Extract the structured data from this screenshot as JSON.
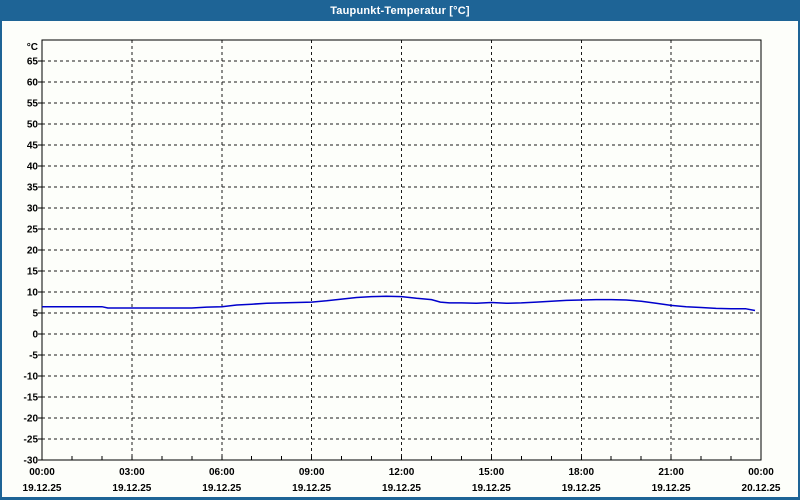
{
  "window": {
    "title": "Taupunkt-Temperatur [°C]",
    "titlebar_color": "#1E6496",
    "titlebar_text_color": "#FFFFFF",
    "border_color": "#1E6496",
    "background_color": "#FDFEFA"
  },
  "chart_data": {
    "type": "line",
    "title": "Taupunkt-Temperatur [°C]",
    "grid": "dashed",
    "legend": "none",
    "frame_color": "#000000",
    "grid_color": "#1A1A1A",
    "label_color": "#000000",
    "x": {
      "min_hours": 0,
      "max_hours": 24,
      "minor_tick_hours": 1,
      "major_tick_hours": 3,
      "ticks": [
        {
          "hour": 0,
          "time": "00:00",
          "date": "19.12.25"
        },
        {
          "hour": 3,
          "time": "03:00",
          "date": "19.12.25"
        },
        {
          "hour": 6,
          "time": "06:00",
          "date": "19.12.25"
        },
        {
          "hour": 9,
          "time": "09:00",
          "date": "19.12.25"
        },
        {
          "hour": 12,
          "time": "12:00",
          "date": "19.12.25"
        },
        {
          "hour": 15,
          "time": "15:00",
          "date": "19.12.25"
        },
        {
          "hour": 18,
          "time": "18:00",
          "date": "19.12.25"
        },
        {
          "hour": 21,
          "time": "21:00",
          "date": "19.12.25"
        },
        {
          "hour": 24,
          "time": "00:00",
          "date": "20.12.25"
        }
      ]
    },
    "y": {
      "unit": "°C",
      "min": -30,
      "max": 70,
      "tick_step": 5,
      "first_label": -30,
      "last_label": 65
    },
    "series": [
      {
        "name": "Taupunkt-Temperatur",
        "color": "#0000CC",
        "points_hours_degC": [
          [
            0.0,
            6.5
          ],
          [
            0.5,
            6.5
          ],
          [
            1.0,
            6.5
          ],
          [
            1.5,
            6.5
          ],
          [
            2.0,
            6.5
          ],
          [
            2.2,
            6.2
          ],
          [
            3.0,
            6.2
          ],
          [
            3.5,
            6.2
          ],
          [
            4.0,
            6.2
          ],
          [
            4.5,
            6.2
          ],
          [
            5.0,
            6.2
          ],
          [
            5.5,
            6.4
          ],
          [
            6.0,
            6.5
          ],
          [
            6.5,
            6.9
          ],
          [
            7.0,
            7.1
          ],
          [
            7.5,
            7.3
          ],
          [
            8.0,
            7.4
          ],
          [
            8.5,
            7.5
          ],
          [
            9.0,
            7.6
          ],
          [
            9.5,
            7.9
          ],
          [
            10.0,
            8.3
          ],
          [
            10.5,
            8.7
          ],
          [
            11.0,
            8.9
          ],
          [
            11.5,
            9.0
          ],
          [
            12.0,
            8.9
          ],
          [
            12.5,
            8.5
          ],
          [
            13.0,
            8.2
          ],
          [
            13.3,
            7.6
          ],
          [
            13.6,
            7.4
          ],
          [
            14.0,
            7.4
          ],
          [
            14.5,
            7.3
          ],
          [
            15.0,
            7.5
          ],
          [
            15.5,
            7.3
          ],
          [
            16.0,
            7.4
          ],
          [
            16.5,
            7.6
          ],
          [
            17.0,
            7.8
          ],
          [
            17.5,
            8.0
          ],
          [
            18.0,
            8.1
          ],
          [
            18.5,
            8.2
          ],
          [
            19.0,
            8.2
          ],
          [
            19.5,
            8.1
          ],
          [
            20.0,
            7.8
          ],
          [
            20.5,
            7.3
          ],
          [
            21.0,
            6.8
          ],
          [
            21.5,
            6.5
          ],
          [
            22.0,
            6.3
          ],
          [
            22.5,
            6.1
          ],
          [
            23.0,
            6.0
          ],
          [
            23.5,
            6.0
          ],
          [
            23.8,
            5.6
          ]
        ]
      }
    ]
  }
}
